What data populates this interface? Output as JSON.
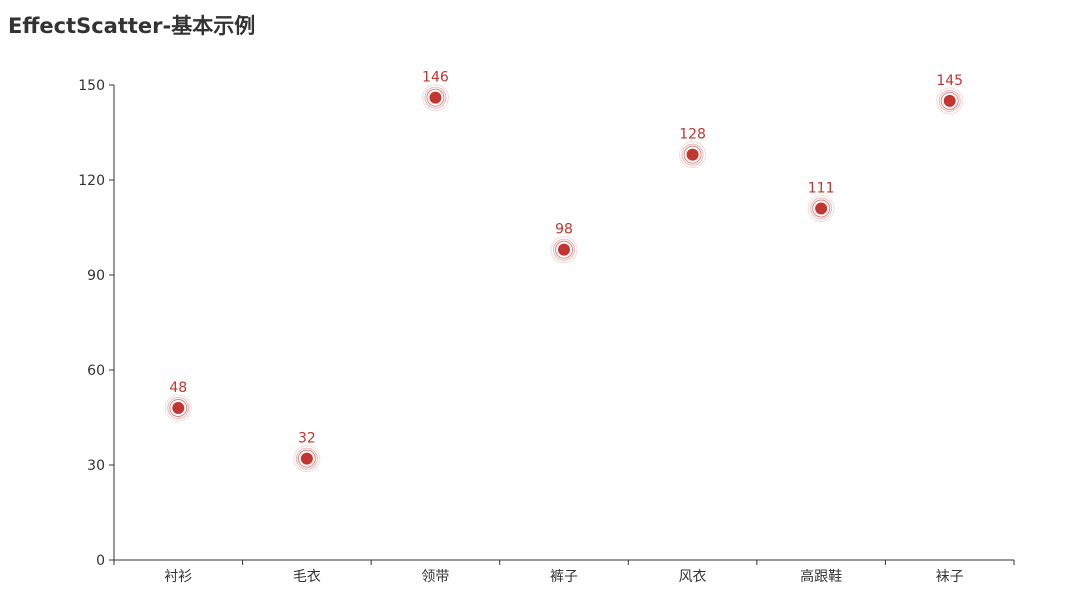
{
  "chart_data": {
    "type": "scatter",
    "title": "EffectScatter-基本示例",
    "categories": [
      "衬衫",
      "毛衣",
      "领带",
      "裤子",
      "风衣",
      "高跟鞋",
      "袜子"
    ],
    "values": [
      48,
      32,
      146,
      98,
      128,
      111,
      145
    ],
    "ylim": [
      0,
      150
    ],
    "yticks": [
      "0",
      "30",
      "60",
      "90",
      "120",
      "150"
    ],
    "xlabel": "",
    "ylabel": "",
    "grid": false,
    "colors": {
      "point": "#c23531",
      "axis": "#333333",
      "text": "#333333"
    }
  }
}
